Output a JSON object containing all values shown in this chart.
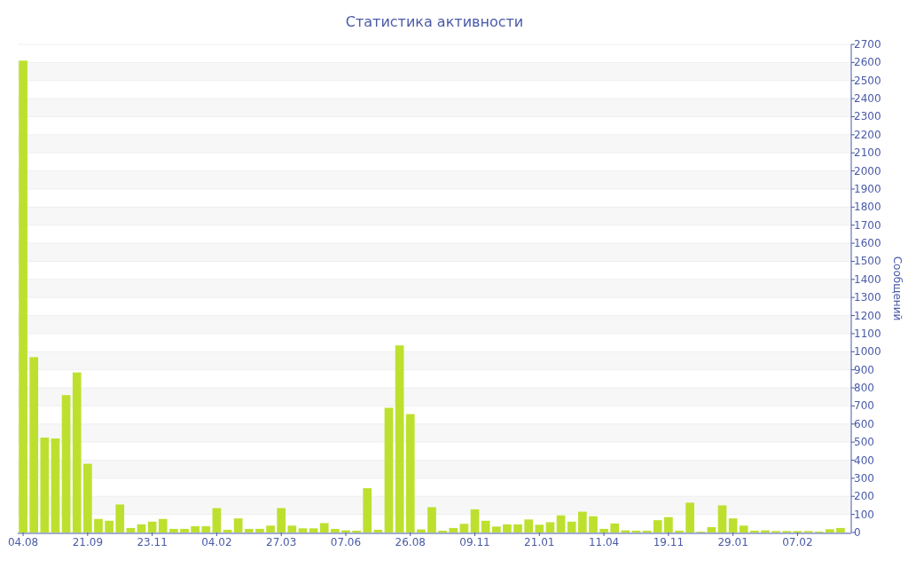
{
  "chart_data": {
    "type": "bar",
    "title": "Статистика активности",
    "ylabel": "Сообщений",
    "categories": [
      "04.08",
      null,
      null,
      null,
      null,
      null,
      "21.09",
      null,
      null,
      null,
      null,
      null,
      "23.11",
      null,
      null,
      null,
      null,
      null,
      "04.02",
      null,
      null,
      null,
      null,
      null,
      "27.03",
      null,
      null,
      null,
      null,
      null,
      "07.06",
      null,
      null,
      null,
      null,
      null,
      "26.08",
      null,
      null,
      null,
      null,
      null,
      "09.11",
      null,
      null,
      null,
      null,
      null,
      "21.01",
      null,
      null,
      null,
      null,
      null,
      "11.04",
      null,
      null,
      null,
      null,
      null,
      "19.11",
      null,
      null,
      null,
      null,
      null,
      "29.01",
      null,
      null,
      null,
      null,
      null,
      "07.02",
      null,
      null,
      null,
      null
    ],
    "values": [
      2610,
      970,
      525,
      520,
      760,
      885,
      380,
      75,
      65,
      155,
      25,
      45,
      60,
      75,
      20,
      20,
      35,
      35,
      135,
      15,
      78,
      20,
      20,
      38,
      135,
      38,
      23,
      23,
      52,
      20,
      12,
      10,
      245,
      15,
      690,
      1035,
      655,
      17,
      140,
      10,
      25,
      48,
      128,
      65,
      33,
      45,
      45,
      72,
      43,
      57,
      95,
      60,
      115,
      90,
      20,
      50,
      12,
      10,
      10,
      68,
      85,
      10,
      165,
      5,
      30,
      150,
      78,
      38,
      10,
      12,
      8,
      8,
      8,
      8,
      5,
      18,
      25
    ],
    "color": "#bde02f",
    "ylim": [
      0,
      2700
    ],
    "yticks": [
      0,
      100,
      200,
      300,
      400,
      500,
      600,
      700,
      800,
      900,
      1000,
      1100,
      1200,
      1300,
      1400,
      1500,
      1600,
      1700,
      1800,
      1900,
      2000,
      2100,
      2200,
      2300,
      2400,
      2500,
      2600,
      2700
    ],
    "grid": "y"
  }
}
